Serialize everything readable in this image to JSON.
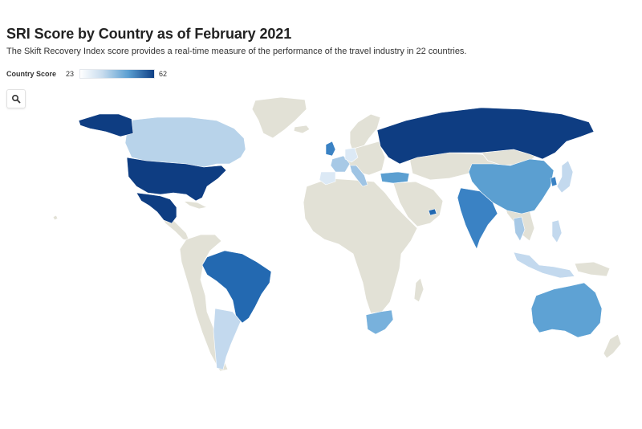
{
  "header": {
    "title": "SRI Score by Country as of February 2021",
    "subtitle": "The Skift Recovery Index score provides a real-time measure of the performance of the travel industry in 22 countries."
  },
  "legend": {
    "title": "Country Score",
    "min": "23",
    "max": "62"
  },
  "controls": {
    "zoom_icon": "search-icon"
  },
  "colors": {
    "land_no_data": "#e2e1d6",
    "scale_low": "#ffffff",
    "scale_high": "#0f3f85"
  },
  "map_data": {
    "type": "choropleth",
    "metric": "Country Score",
    "scale": [
      23,
      62
    ],
    "countries": [
      {
        "name": "United States",
        "color": "#0e3d82"
      },
      {
        "name": "Mexico",
        "color": "#0e3d82"
      },
      {
        "name": "Canada",
        "color": "#b8d3ea"
      },
      {
        "name": "Brazil",
        "color": "#2369b1"
      },
      {
        "name": "Argentina",
        "color": "#c3d9ee"
      },
      {
        "name": "Russia",
        "color": "#0e3d82"
      },
      {
        "name": "China",
        "color": "#5b9fd1"
      },
      {
        "name": "India",
        "color": "#3a82c4"
      },
      {
        "name": "Australia",
        "color": "#5ea2d4"
      },
      {
        "name": "South Africa",
        "color": "#78b1dc"
      },
      {
        "name": "United Kingdom",
        "color": "#3a82c4"
      },
      {
        "name": "France",
        "color": "#a7c9e6"
      },
      {
        "name": "Spain",
        "color": "#dce9f5"
      },
      {
        "name": "Italy",
        "color": "#9fc4e4"
      },
      {
        "name": "Germany",
        "color": "#dce9f5"
      },
      {
        "name": "Turkey",
        "color": "#5b9fd1"
      },
      {
        "name": "United Arab Emirates",
        "color": "#2369b1"
      },
      {
        "name": "Japan",
        "color": "#c3d9ee"
      },
      {
        "name": "South Korea",
        "color": "#3a82c4"
      },
      {
        "name": "Thailand",
        "color": "#a7c9e6"
      },
      {
        "name": "Indonesia",
        "color": "#c3d9ee"
      },
      {
        "name": "Philippines",
        "color": "#c3d9ee"
      }
    ]
  }
}
